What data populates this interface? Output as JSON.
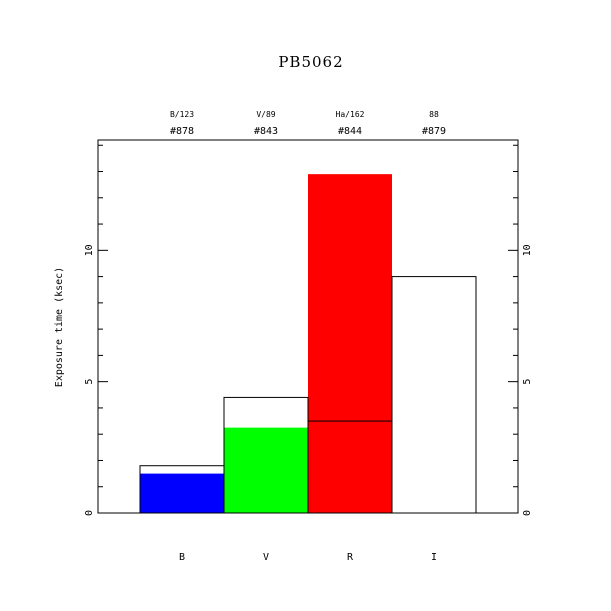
{
  "chart_data": {
    "type": "bar",
    "title": "PB5062",
    "y_label": "Exposure time (ksec)",
    "categories": [
      "B",
      "V",
      "R",
      "I"
    ],
    "top_labels": [
      "B/123",
      "V/89",
      "Ha/162",
      "88"
    ],
    "top_numbers": [
      "#878",
      "#843",
      "#844",
      "#879"
    ],
    "series": [
      {
        "style": "filled",
        "colors": [
          "#0000ff",
          "#00ff00",
          "#ff0000",
          null
        ],
        "values": [
          1.5,
          3.25,
          12.9,
          null
        ]
      },
      {
        "style": "outline",
        "color": "#000000",
        "values": [
          1.8,
          4.4,
          3.5,
          9.0
        ]
      }
    ],
    "ylim": [
      0,
      14.2
    ],
    "yticks": [
      0,
      5,
      10
    ],
    "yticks_minor": [
      1,
      2,
      3,
      4,
      6,
      7,
      8,
      9,
      11,
      12,
      13,
      14
    ]
  }
}
